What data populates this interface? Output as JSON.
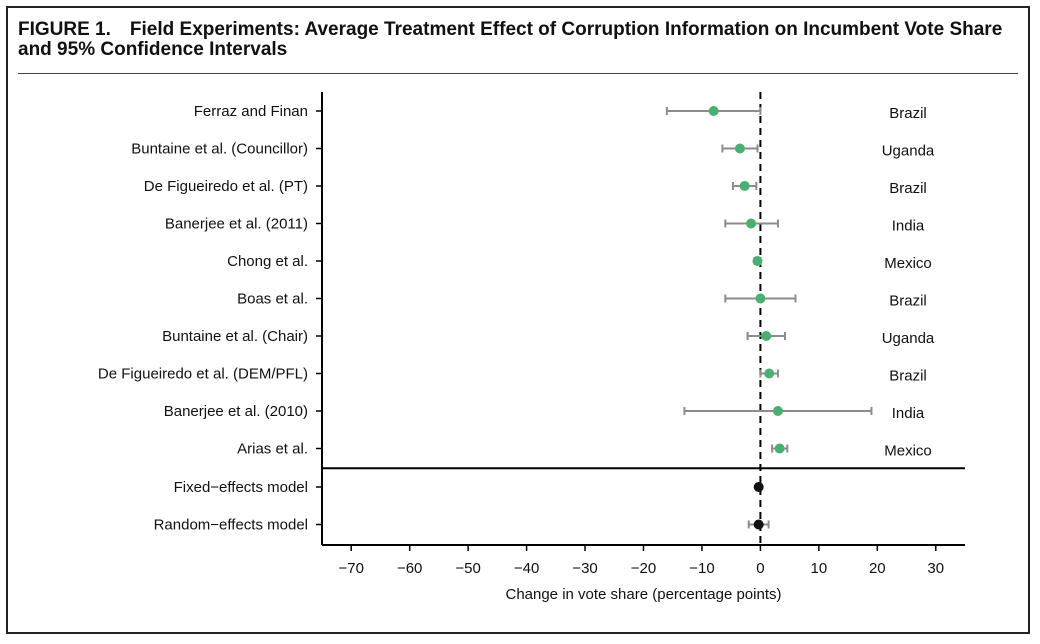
{
  "figure": {
    "title": "FIGURE 1. Field Experiments: Average Treatment Effect of Corruption Information on Incumbent Vote Share and 95% Confidence Intervals"
  },
  "colors": {
    "study_point": "#4caf72",
    "pooled_point": "#111111",
    "error_bar": "#8c8c8c",
    "zero_line": "#000000"
  },
  "chart_data": {
    "type": "scatter",
    "orientation": "horizontal",
    "title": "FIGURE 1. Field Experiments: Average Treatment Effect of Corruption Information on Incumbent Vote Share and 95% Confidence Intervals",
    "xlabel": "Change in vote share (percentage points)",
    "ylabel": "",
    "xlim": [
      -75,
      35
    ],
    "xticks": [
      -70,
      -60,
      -50,
      -40,
      -30,
      -20,
      -10,
      0,
      10,
      20,
      30
    ],
    "reference_line": 0,
    "grid": false,
    "legend": "none",
    "studies": [
      {
        "label": "Ferraz and Finan",
        "country": "Brazil",
        "estimate": -8,
        "ci": [
          -16,
          0
        ]
      },
      {
        "label": "Buntaine et al. (Councillor)",
        "country": "Uganda",
        "estimate": -3.5,
        "ci": [
          -6.5,
          -0.5
        ]
      },
      {
        "label": "De Figueiredo et al. (PT)",
        "country": "Brazil",
        "estimate": -2.7,
        "ci": [
          -4.7,
          -0.7
        ]
      },
      {
        "label": "Banerjee et al. (2011)",
        "country": "India",
        "estimate": -1.6,
        "ci": [
          -6,
          3
        ]
      },
      {
        "label": "Chong et al.",
        "country": "Mexico",
        "estimate": -0.5,
        "ci": [
          -1,
          0
        ]
      },
      {
        "label": "Boas et al.",
        "country": "Brazil",
        "estimate": 0,
        "ci": [
          -6,
          6
        ]
      },
      {
        "label": "Buntaine et al. (Chair)",
        "country": "Uganda",
        "estimate": 1,
        "ci": [
          -2.2,
          4.2
        ]
      },
      {
        "label": "De Figueiredo et al. (DEM/PFL)",
        "country": "Brazil",
        "estimate": 1.5,
        "ci": [
          0,
          3
        ]
      },
      {
        "label": "Banerjee et al. (2010)",
        "country": "India",
        "estimate": 3,
        "ci": [
          -13,
          19
        ]
      },
      {
        "label": "Arias et al.",
        "country": "Mexico",
        "estimate": 3.3,
        "ci": [
          2,
          4.6
        ]
      }
    ],
    "pooled": [
      {
        "label": "Fixed−effects model",
        "estimate": -0.3,
        "ci": [
          -0.6,
          0
        ]
      },
      {
        "label": "Random−effects model",
        "estimate": -0.3,
        "ci": [
          -2,
          1.4
        ]
      }
    ]
  }
}
